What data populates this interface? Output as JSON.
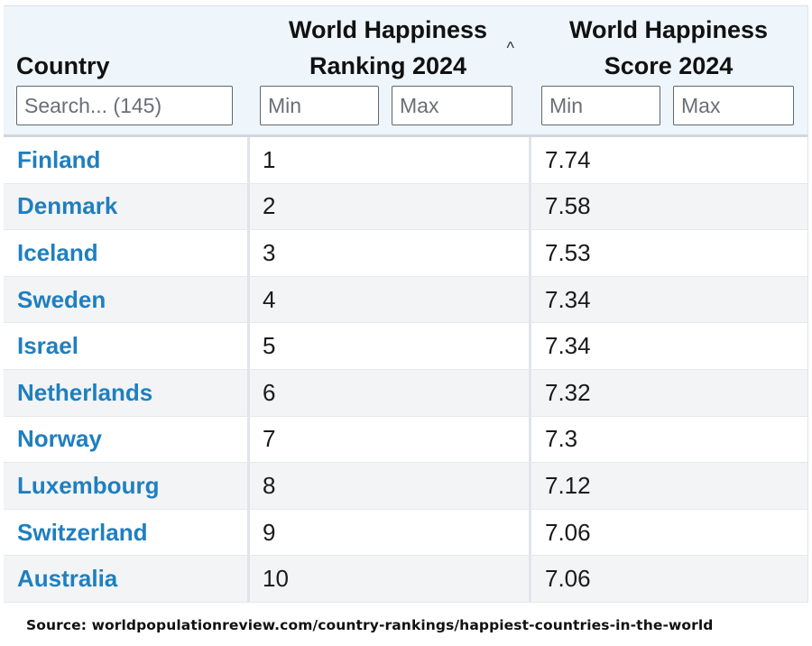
{
  "header": {
    "country": "Country",
    "ranking_line1": "World Happiness",
    "ranking_line2": "Ranking 2024",
    "score_line1": "World Happiness",
    "score_line2": "Score 2024",
    "sort_indicator": "^"
  },
  "filters": {
    "search_placeholder": "Search... (145)",
    "min_placeholder": "Min",
    "max_placeholder": "Max"
  },
  "rows": [
    {
      "country": "Finland",
      "rank": "1",
      "score": "7.74"
    },
    {
      "country": "Denmark",
      "rank": "2",
      "score": "7.58"
    },
    {
      "country": "Iceland",
      "rank": "3",
      "score": "7.53"
    },
    {
      "country": "Sweden",
      "rank": "4",
      "score": "7.34"
    },
    {
      "country": "Israel",
      "rank": "5",
      "score": "7.34"
    },
    {
      "country": "Netherlands",
      "rank": "6",
      "score": "7.32"
    },
    {
      "country": "Norway",
      "rank": "7",
      "score": "7.3"
    },
    {
      "country": "Luxembourg",
      "rank": "8",
      "score": "7.12"
    },
    {
      "country": "Switzerland",
      "rank": "9",
      "score": "7.06"
    },
    {
      "country": "Australia",
      "rank": "10",
      "score": "7.06"
    }
  ],
  "source": "Source: worldpopulationreview.com/country-rankings/happiest-countries-in-the-world",
  "colors": {
    "header_bg": "#eef6fc",
    "link": "#1f7fbf",
    "stripe": "#f3f4f6"
  }
}
